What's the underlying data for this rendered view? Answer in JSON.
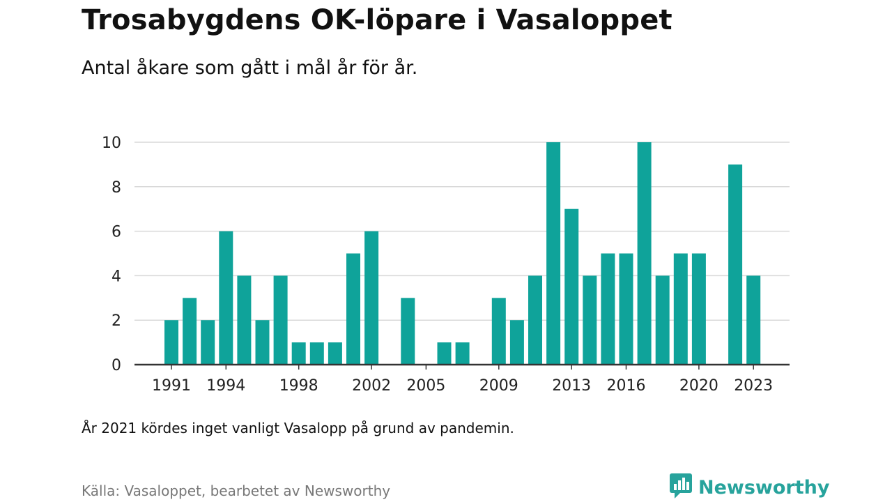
{
  "header": {
    "title": "Trosabygdens OK-löpare i Vasaloppet",
    "subtitle": "Antal åkare som gått i mål år för år."
  },
  "footer": {
    "note": "År 2021 kördes inget vanligt Vasalopp på grund av pandemin.",
    "source": "Källa: Vasaloppet, bearbetet av Newsworthy",
    "brand": "Newsworthy",
    "brand_icon": "newsworthy-logo-icon"
  },
  "colors": {
    "bar": "#0fa39a",
    "grid": "#d9d9d9",
    "axis": "#333333",
    "brand": "#27a39c"
  },
  "chart_data": {
    "type": "bar",
    "categories": [
      "1991",
      "1992",
      "1993",
      "1994",
      "1995",
      "1996",
      "1997",
      "1998",
      "1999",
      "2000",
      "2001",
      "2002",
      "2003",
      "2004",
      "2005",
      "2006",
      "2007",
      "2008",
      "2009",
      "2010",
      "2011",
      "2012",
      "2013",
      "2014",
      "2015",
      "2016",
      "2017",
      "2018",
      "2019",
      "2020",
      "2021",
      "2022",
      "2023"
    ],
    "values": [
      2,
      3,
      2,
      6,
      4,
      2,
      4,
      1,
      1,
      1,
      5,
      6,
      0,
      3,
      0,
      1,
      1,
      0,
      3,
      2,
      4,
      10,
      7,
      4,
      5,
      5,
      10,
      4,
      5,
      5,
      0,
      9,
      4
    ],
    "x_tick_labels": [
      "1991",
      "1994",
      "1998",
      "2002",
      "2005",
      "2009",
      "2013",
      "2016",
      "2020",
      "2023"
    ],
    "y_ticks": [
      0,
      2,
      4,
      6,
      8,
      10
    ],
    "ylim": [
      0,
      10
    ],
    "grid": true,
    "legend": "none",
    "xlabel": "",
    "ylabel": ""
  }
}
